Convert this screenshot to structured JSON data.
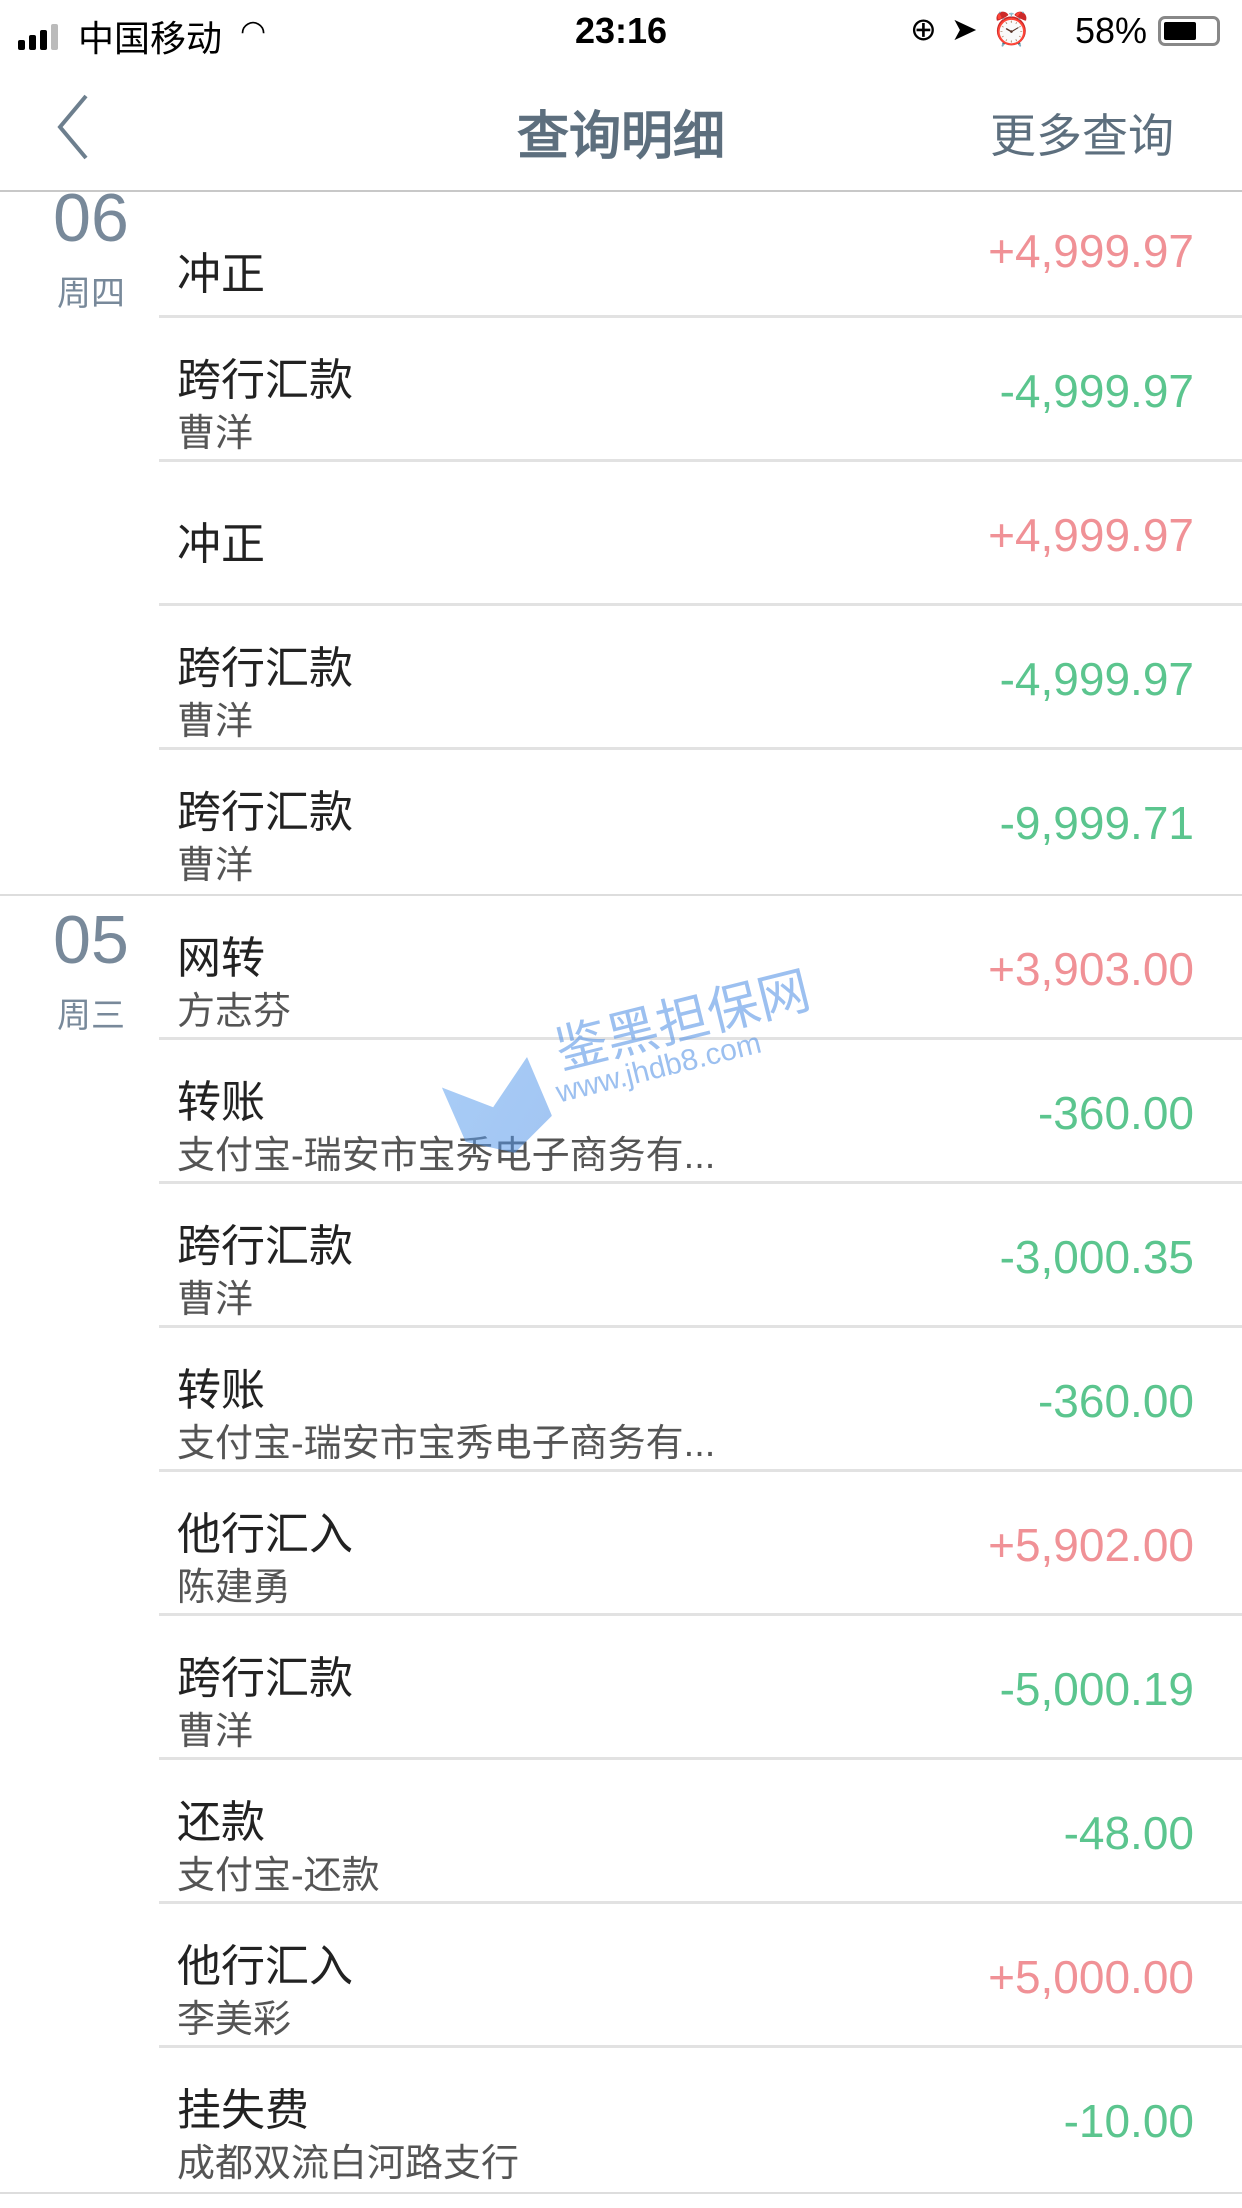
{
  "status": {
    "carrier": "中国移动",
    "time": "23:16",
    "battery": "58%",
    "battery_level": 0.58
  },
  "nav": {
    "title": "查询明细",
    "more": "更多查询"
  },
  "groups": [
    {
      "day": "06",
      "weekday": "周四",
      "rows": [
        {
          "title": "冲正",
          "sub": "",
          "amount": "+4,999.97",
          "type": "pos"
        },
        {
          "title": "跨行汇款",
          "sub": "曹洋",
          "amount": "-4,999.97",
          "type": "neg"
        },
        {
          "title": "冲正",
          "sub": "",
          "amount": "+4,999.97",
          "type": "pos"
        },
        {
          "title": "跨行汇款",
          "sub": "曹洋",
          "amount": "-4,999.97",
          "type": "neg"
        },
        {
          "title": "跨行汇款",
          "sub": "曹洋",
          "amount": "-9,999.71",
          "type": "neg"
        }
      ]
    },
    {
      "day": "05",
      "weekday": "周三",
      "rows": [
        {
          "title": "网转",
          "sub": "方志芬",
          "amount": "+3,903.00",
          "type": "pos"
        },
        {
          "title": "转账",
          "sub": "支付宝-瑞安市宝秀电子商务有...",
          "amount": "-360.00",
          "type": "neg"
        },
        {
          "title": "跨行汇款",
          "sub": "曹洋",
          "amount": "-3,000.35",
          "type": "neg"
        },
        {
          "title": "转账",
          "sub": "支付宝-瑞安市宝秀电子商务有...",
          "amount": "-360.00",
          "type": "neg"
        },
        {
          "title": "他行汇入",
          "sub": "陈建勇",
          "amount": "+5,902.00",
          "type": "pos"
        },
        {
          "title": "跨行汇款",
          "sub": "曹洋",
          "amount": "-5,000.19",
          "type": "neg"
        },
        {
          "title": "还款",
          "sub": "支付宝-还款",
          "amount": "-48.00",
          "type": "neg"
        },
        {
          "title": "他行汇入",
          "sub": "李美彩",
          "amount": "+5,000.00",
          "type": "pos"
        },
        {
          "title": "挂失费",
          "sub": "成都双流白河路支行",
          "amount": "-10.00",
          "type": "neg"
        }
      ]
    }
  ],
  "watermark": {
    "name": "鉴黑担保网",
    "url": "www.jhdb8.com"
  },
  "colors": {
    "positive": "#f09196",
    "negative": "#5bc58e",
    "nav_text": "#5d6f7e"
  }
}
